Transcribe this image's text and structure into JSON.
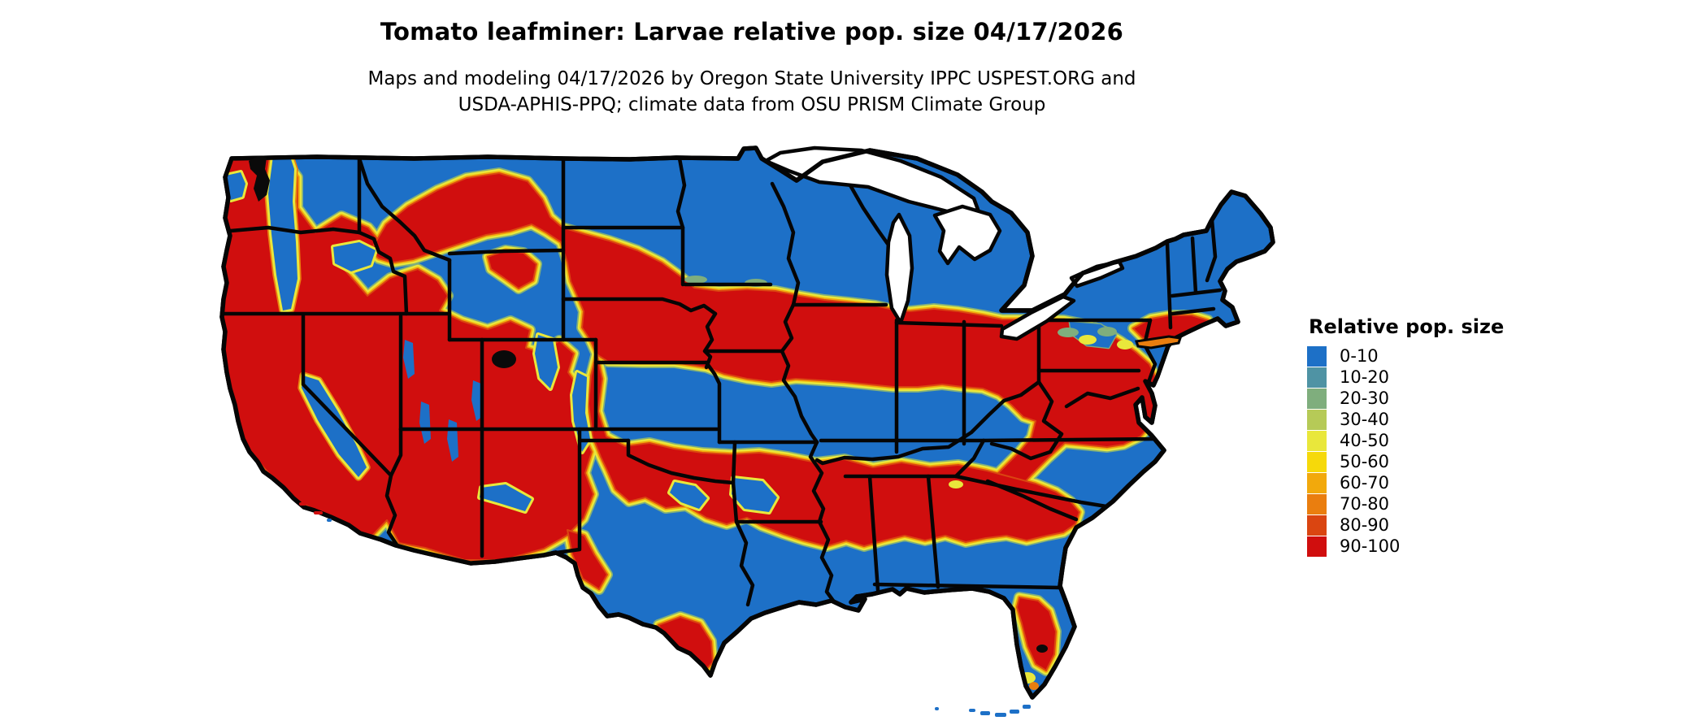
{
  "header": {
    "title": "Tomato leafminer: Larvae relative pop. size 04/17/2026",
    "subtitle_line1": "Maps and modeling 04/17/2026 by Oregon State University IPPC USPEST.ORG and",
    "subtitle_line2": "USDA-APHIS-PPQ; climate data from OSU PRISM Climate Group"
  },
  "legend": {
    "title": "Relative pop. size",
    "items": [
      {
        "label": "0-10",
        "color": "#1d70c7"
      },
      {
        "label": "10-20",
        "color": "#4f93a4"
      },
      {
        "label": "20-30",
        "color": "#7fae7d"
      },
      {
        "label": "30-40",
        "color": "#b6ca57"
      },
      {
        "label": "40-50",
        "color": "#e9e73b"
      },
      {
        "label": "50-60",
        "color": "#f6d90a"
      },
      {
        "label": "60-70",
        "color": "#f2a90c"
      },
      {
        "label": "70-80",
        "color": "#ea7e0f"
      },
      {
        "label": "80-90",
        "color": "#da4511"
      },
      {
        "label": "90-100",
        "color": "#d00e0e"
      }
    ]
  },
  "map": {
    "kind": "US lower-48 raster map of relative population size",
    "land_low_value_color": "#1d70c7",
    "high_value_color": "#d00e0e",
    "state_border_color": "#050505",
    "lake_fill": "#ffffff",
    "background": "#ffffff"
  }
}
